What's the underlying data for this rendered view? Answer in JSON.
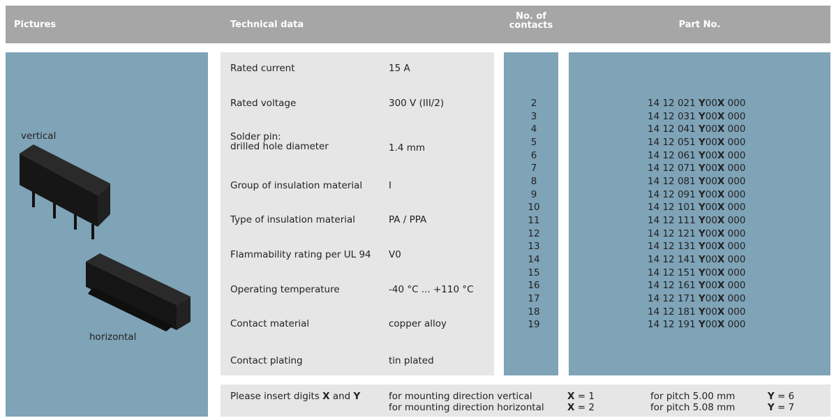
{
  "header": {
    "pictures": "Pictures",
    "technical_data": "Technical data",
    "contacts": "No. of\ncontacts",
    "part_no": "Part No."
  },
  "pictures": {
    "vertical": "vertical",
    "horizontal": "horizontal"
  },
  "technical_data": {
    "rows": [
      [
        "Rated current",
        "15 A"
      ],
      [
        "Rated voltage",
        "300 V (III/2)"
      ],
      [
        "Solder pin:\ndrilled hole diameter",
        "1.4 mm"
      ],
      [
        "Group of insulation material",
        "I"
      ],
      [
        "Type of insulation material",
        "PA / PPA"
      ],
      [
        "Flammability rating per UL 94",
        "V0"
      ],
      [
        "Operating temperature",
        "-40 °C ... +110 °C"
      ],
      [
        "Contact material",
        "copper alloy"
      ],
      [
        "Contact plating",
        "tin plated"
      ]
    ]
  },
  "contacts": [
    2,
    3,
    4,
    5,
    6,
    7,
    8,
    9,
    10,
    11,
    12,
    13,
    14,
    15,
    16,
    17,
    18,
    19
  ],
  "part_numbers": [
    "14 12 021 Y00X 000",
    "14 12 031 Y00X 000",
    "14 12 041 Y00X 000",
    "14 12 051 Y00X 000",
    "14 12 061 Y00X 000",
    "14 12 071 Y00X 000",
    "14 12 081 Y00X 000",
    "14 12 091 Y00X 000",
    "14 12 101 Y00X 000",
    "14 12 111 Y00X 000",
    "14 12 121 Y00X 000",
    "14 12 131 Y00X 000",
    "14 12 141 Y00X 000",
    "14 12 151 Y00X 000",
    "14 12 161 Y00X 000",
    "14 12 171 Y00X 000",
    "14 12 181 Y00X 000",
    "14 12 191 Y00X 000"
  ],
  "footer": {
    "note": "Please insert digits X and Y",
    "rows": [
      [
        "for mounting direction vertical",
        "X = 1",
        "for pitch 5.00 mm",
        "Y = 6"
      ],
      [
        "for mounting direction horizontal",
        "X = 2",
        "for pitch 5.08 mm",
        "Y = 7"
      ]
    ]
  }
}
